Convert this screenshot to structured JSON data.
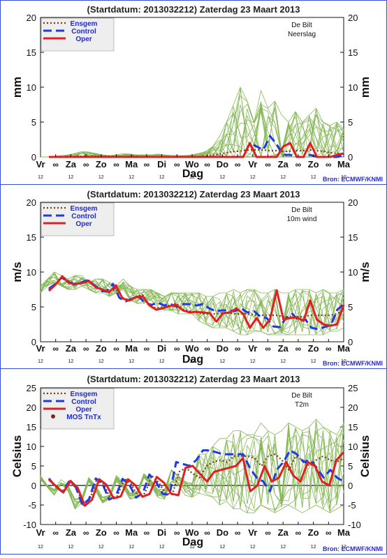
{
  "page": {
    "border_color": "#3a4fd8",
    "bg": "#ffffff",
    "plot_bg": "#ffffff",
    "legend_bg": "#eeeeee"
  },
  "days": [
    "Vr",
    "∞",
    "Za",
    "∞",
    "Zo",
    "∞",
    "Ma",
    "∞",
    "Di",
    "∞",
    "Wo",
    "∞",
    "Do",
    "∞",
    "Vr",
    "∞",
    "Za",
    "∞",
    "Zo",
    "∞",
    "Ma"
  ],
  "hour_labels": [
    "12",
    "12",
    "12",
    "12",
    "12",
    "12",
    "12",
    "12",
    "12",
    "12",
    "12"
  ],
  "xlabel": "Dag",
  "source": "Bron: ECMWF/KNMI",
  "colors": {
    "ensgem": "#7a3a1a",
    "control": "#1f3ae0",
    "oper": "#e02020",
    "members": "#86b857",
    "mos": "#7a2a1a",
    "legend_text": "#1f2ad0",
    "source_text": "#2a2ad0"
  },
  "chart_data": [
    {
      "type": "line",
      "title": "(Startdatum: 2013032212)   Zaterdag  23 Maart    2013",
      "station": "De Bilt",
      "variable": "Neerslag",
      "ylabel": "mm",
      "ylim": [
        0,
        20
      ],
      "yticks": [
        0,
        5,
        10,
        15,
        20
      ],
      "legend": [
        "Ensgem",
        "Control",
        "Oper"
      ],
      "show_source": true,
      "show_zero_line": false,
      "members_max": [
        0,
        0,
        0.1,
        0.2,
        0.3,
        0.5,
        0.8,
        0.7,
        0.5,
        0.3,
        0.2,
        0.3,
        0.5,
        0.4,
        0.3,
        0.3,
        0.3,
        0.4,
        0.3,
        0.2,
        0.2,
        0.2,
        0.3,
        0.5,
        0.8,
        1.5,
        3,
        5,
        7.5,
        10,
        8,
        5,
        9.5,
        7,
        8,
        6,
        5,
        6.5,
        5,
        6,
        7,
        5,
        4.5,
        5,
        4
      ],
      "members_min": [
        0,
        0,
        0,
        0,
        0,
        0,
        0,
        0,
        0,
        0,
        0,
        0,
        0,
        0,
        0,
        0,
        0,
        0,
        0,
        0,
        0,
        0,
        0,
        0,
        0,
        0,
        0,
        0,
        0,
        0,
        0,
        0,
        0,
        0,
        0,
        0,
        0,
        0,
        0,
        0,
        0,
        0,
        0,
        0,
        0
      ],
      "series": [
        {
          "name": "Ensgem",
          "values": [
            0,
            0,
            0,
            0,
            0.1,
            0.1,
            0.1,
            0.1,
            0.1,
            0.1,
            0,
            0,
            0.1,
            0.1,
            0,
            0,
            0,
            0,
            0,
            0,
            0,
            0,
            0,
            0.1,
            0.2,
            0.3,
            0.5,
            0.7,
            0.8,
            0.9,
            1,
            1,
            1,
            0.9,
            0.9,
            0.8,
            0.8,
            0.9,
            0.9,
            1,
            0.9,
            0.8,
            0.6,
            0.5,
            0.5
          ]
        },
        {
          "name": "Control",
          "values": [
            0,
            0,
            0,
            0,
            0,
            0,
            0,
            0,
            0,
            0,
            0,
            0,
            0,
            0,
            0,
            0,
            0,
            0,
            0,
            0,
            0,
            0,
            0,
            0,
            0,
            0,
            0,
            0,
            0,
            0,
            2,
            1.5,
            1,
            3,
            1.8,
            0.3,
            0.3,
            0,
            0,
            0.3,
            0,
            0,
            0,
            0,
            0.2
          ]
        },
        {
          "name": "Oper",
          "values": [
            0,
            0,
            0,
            0,
            0,
            0,
            0,
            0,
            0,
            0,
            0,
            0,
            0,
            0,
            0,
            0,
            0,
            0,
            0,
            0,
            0,
            0,
            0,
            0,
            0,
            0,
            0,
            0,
            0,
            0,
            2,
            0,
            0,
            0,
            0,
            1.5,
            2,
            0,
            0,
            2,
            0,
            0,
            0,
            0.3,
            0.5
          ]
        }
      ]
    },
    {
      "type": "line",
      "title": "(Startdatum: 2013032212)   Zaterdag  23 Maart    2013",
      "station": "De Bilt",
      "variable": "10m wind",
      "ylabel": "m/s",
      "ylim": [
        0,
        20
      ],
      "yticks": [
        0,
        5,
        10,
        15,
        20
      ],
      "legend": [
        "Ensgem",
        "Control",
        "Oper"
      ],
      "show_source": true,
      "show_zero_line": false,
      "members_max": [
        8,
        9,
        10,
        9.5,
        9,
        9.5,
        9.5,
        8.5,
        9,
        9,
        8.5,
        8,
        9,
        8,
        7.5,
        7.5,
        7.5,
        7,
        6.5,
        7,
        7,
        7,
        7,
        7,
        6.5,
        6.5,
        7,
        7,
        7.5,
        7,
        7.5,
        7.5,
        7,
        7,
        7.5,
        7,
        7,
        7.5,
        7.5,
        7.5,
        7,
        7.5,
        7,
        7,
        7.5
      ],
      "members_min": [
        7,
        8,
        8.5,
        8,
        7.5,
        7.5,
        8,
        7.5,
        7,
        7,
        6.5,
        7,
        7.5,
        6,
        5.5,
        5.5,
        6,
        5,
        4.5,
        4.5,
        4,
        4,
        4,
        3,
        2.5,
        2,
        2,
        2,
        1.5,
        1,
        1,
        1.5,
        1.5,
        1,
        1,
        1,
        1,
        1,
        1,
        1,
        1,
        1,
        1.5,
        1.5,
        2
      ],
      "series": [
        {
          "name": "Ensgem",
          "values": [
            7.5,
            8.3,
            9.2,
            8.7,
            8.4,
            8.4,
            8.8,
            8,
            7.5,
            7.3,
            7.5,
            6.3,
            6,
            6.5,
            6.7,
            5.3,
            4.8,
            5,
            5.2,
            5.5,
            4.7,
            4.4,
            4.2,
            4,
            4,
            4,
            4.2,
            4.1,
            4,
            4,
            4,
            3.8,
            3.8,
            3.8,
            3.8,
            3.6,
            3.6,
            3.6,
            3.6,
            3.8,
            3.8,
            3.8,
            3.8,
            4,
            4.5
          ]
        },
        {
          "name": "Control",
          "values": [
            7.6,
            8.3,
            9.2,
            8.6,
            8.2,
            8.5,
            8.8,
            8.2,
            7.3,
            7.2,
            8.3,
            6.3,
            5.8,
            6.2,
            6.5,
            5.6,
            5.3,
            5.6,
            5.2,
            5.4,
            5,
            5.4,
            5.4,
            5.2,
            5.4,
            4.8,
            4.4,
            4.5,
            4.5,
            4.4,
            4.8,
            4.2,
            4.4,
            3.6,
            3.4,
            2.2,
            2.1,
            3.4,
            4,
            3,
            3.2,
            2,
            1.8,
            2.1,
            2.4,
            4.6,
            5.4
          ]
        },
        {
          "name": "Oper",
          "values": [
            7.3,
            8.2,
            9.4,
            8.4,
            8.3,
            8.4,
            8.7,
            7.8,
            7.5,
            7.1,
            8.1,
            6.2,
            5.9,
            6.4,
            6.5,
            5.2,
            4.6,
            4.8,
            5.1,
            5.3,
            4.5,
            4.2,
            4.3,
            4.2,
            4.1,
            2.9,
            4.1,
            4.2,
            4.8,
            4,
            2,
            3.4,
            2,
            3.2,
            7.4,
            3.2,
            3.4,
            3.5,
            3,
            5.9,
            3.2,
            2.5,
            2.3,
            2.5,
            5.3
          ]
        }
      ]
    },
    {
      "type": "line",
      "title": "(Startdatum: 2013032212)   Zaterdag  23 Maart    2013",
      "station": "De Bilt",
      "variable": "T2m",
      "ylabel": "Celsius",
      "ylim": [
        -10,
        25
      ],
      "yticks": [
        -10,
        -5,
        0,
        5,
        10,
        15,
        20,
        25
      ],
      "legend": [
        "Ensgem",
        "Control",
        "Oper",
        "MOS TnTx"
      ],
      "show_source": true,
      "show_zero_line": true,
      "members_max": [
        2.5,
        0,
        -1,
        1.5,
        0,
        -3.5,
        -3,
        2,
        0,
        -3,
        -2.5,
        2.5,
        1,
        -2,
        -1.5,
        3,
        1.5,
        -1,
        -1,
        4,
        2.5,
        1,
        0.5,
        8,
        8,
        10,
        12,
        12,
        14,
        14,
        13,
        13,
        16,
        14,
        13,
        14,
        16,
        15,
        14,
        15,
        17,
        15,
        14,
        13,
        16
      ],
      "members_min": [
        1.5,
        -0.5,
        -2.5,
        0.5,
        -1.5,
        -6,
        -4.5,
        1,
        -1.5,
        -4.5,
        -3.5,
        1,
        -0.5,
        -3.5,
        -3,
        2,
        0,
        -3,
        -3.5,
        1,
        0,
        -2.5,
        -3,
        -2,
        -2.5,
        -3,
        -5,
        -4,
        -6,
        -6,
        -7,
        -7,
        -5,
        -6,
        -7,
        -6,
        -5,
        -6,
        -7,
        -6,
        -5,
        -6,
        -7,
        -6,
        -5
      ],
      "series": [
        {
          "name": "Ensgem",
          "values": [
            1.8,
            -0.3,
            -1.7,
            1,
            -0.5,
            -5,
            -3.5,
            1.7,
            0.3,
            -3.5,
            -2.7,
            1.8,
            0.3,
            -2.8,
            -2,
            2.5,
            0.8,
            -2,
            -2.3,
            3.5,
            4.5,
            3,
            2,
            5,
            6,
            6.5,
            6,
            7.5,
            7.5,
            7.5,
            7,
            5,
            7.5,
            8,
            6.5,
            4,
            7.5,
            6.5,
            5,
            6.5,
            7.5,
            6.5,
            6,
            7
          ]
        },
        {
          "name": "Control",
          "values": [
            1.8,
            -0.3,
            -1.6,
            1,
            -0.4,
            -5,
            -3.5,
            1.8,
            0.4,
            -3.6,
            -2.7,
            1.7,
            0.2,
            -3.1,
            -2,
            2.8,
            0.9,
            -2.2,
            -2.4,
            6,
            5.5,
            5,
            6.5,
            9,
            9,
            8.5,
            8,
            8,
            8,
            8,
            4.5,
            2,
            1,
            -1.5,
            4,
            6,
            9,
            8,
            6,
            6.5,
            4.5,
            2,
            4,
            2,
            1
          ]
        },
        {
          "name": "Oper",
          "values": [
            1.5,
            -0.2,
            -1.8,
            1.2,
            -0.6,
            -5.2,
            -3.6,
            1.6,
            0.2,
            -3.3,
            -2.8,
            1.6,
            0.1,
            -2.9,
            -2.2,
            2.2,
            0.7,
            -2.1,
            -2.5,
            4.5,
            5,
            3,
            1,
            3.5,
            4,
            4.5,
            5,
            7,
            -1.5,
            0,
            5,
            1,
            2,
            6,
            2.5,
            1,
            6,
            5,
            1,
            0,
            6.5,
            8.5
          ]
        }
      ],
      "mos": [
        {
          "x": 5.5,
          "y": 10
        }
      ]
    }
  ]
}
